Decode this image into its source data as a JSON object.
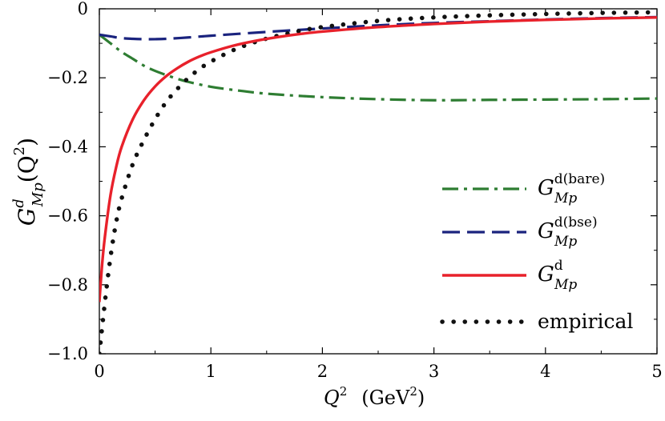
{
  "chart_data": {
    "type": "line",
    "xlabel": {
      "main": "Q",
      "sup": "2",
      "unit_main": "(GeV",
      "unit_sup": "2",
      "unit_close": ")"
    },
    "ylabel": {
      "main": "G",
      "sup": "d",
      "sub": "Mp",
      "arg_open": "(Q",
      "arg_sup": "2",
      "arg_close": ")"
    },
    "xlim": [
      0,
      5
    ],
    "ylim": [
      -1.0,
      0
    ],
    "x_ticks": [
      0,
      1,
      2,
      3,
      4,
      5
    ],
    "x_tick_labels": [
      "0",
      "1",
      "2",
      "3",
      "4",
      "5"
    ],
    "y_ticks": [
      0,
      -0.2,
      -0.4,
      -0.6,
      -0.8,
      -1.0
    ],
    "y_tick_labels": [
      "0",
      "−0.2",
      "−0.4",
      "−0.6",
      "−0.8",
      "−1.0"
    ],
    "grid": false,
    "legend_position": "lower-right",
    "series": [
      {
        "id": "bare",
        "legend_main": "G",
        "legend_sup": "d(bare)",
        "legend_sub": "Mp",
        "color": "#2e7d32",
        "style": "dashdot",
        "x": [
          0,
          0.1,
          0.2,
          0.3,
          0.4,
          0.5,
          0.6,
          0.7,
          0.8,
          1.0,
          1.2,
          1.5,
          2.0,
          2.5,
          3.0,
          3.5,
          4.0,
          4.5,
          5.0
        ],
        "y": [
          -0.075,
          -0.1,
          -0.125,
          -0.145,
          -0.165,
          -0.18,
          -0.192,
          -0.203,
          -0.212,
          -0.226,
          -0.235,
          -0.246,
          -0.256,
          -0.262,
          -0.265,
          -0.264,
          -0.263,
          -0.262,
          -0.26
        ]
      },
      {
        "id": "bse",
        "legend_main": "G",
        "legend_sup": "d(bse)",
        "legend_sub": "Mp",
        "color": "#1a237e",
        "style": "dashed",
        "x": [
          0,
          0.1,
          0.2,
          0.3,
          0.4,
          0.5,
          0.6,
          0.8,
          1.0,
          1.5,
          2.0,
          2.5,
          3.0,
          3.5,
          4.0,
          4.5,
          5.0
        ],
        "y": [
          -0.075,
          -0.08,
          -0.085,
          -0.087,
          -0.088,
          -0.088,
          -0.087,
          -0.083,
          -0.078,
          -0.067,
          -0.057,
          -0.048,
          -0.041,
          -0.036,
          -0.031,
          -0.027,
          -0.024
        ]
      },
      {
        "id": "total",
        "legend_main": "G",
        "legend_sup": "d",
        "legend_sub": "Mp",
        "color": "#e8212b",
        "style": "solid",
        "x": [
          0,
          0.025,
          0.05,
          0.1,
          0.15,
          0.2,
          0.3,
          0.4,
          0.5,
          0.6,
          0.7,
          0.8,
          0.9,
          1.0,
          1.2,
          1.4,
          1.6,
          1.8,
          2.0,
          2.5,
          3.0,
          3.5,
          4.0,
          4.5,
          5.0
        ],
        "y": [
          -0.85,
          -0.74,
          -0.66,
          -0.54,
          -0.46,
          -0.4,
          -0.32,
          -0.265,
          -0.225,
          -0.195,
          -0.172,
          -0.153,
          -0.138,
          -0.126,
          -0.107,
          -0.093,
          -0.082,
          -0.073,
          -0.066,
          -0.053,
          -0.044,
          -0.037,
          -0.032,
          -0.028,
          -0.025
        ]
      },
      {
        "id": "empirical",
        "legend_text": "empirical",
        "color": "#111111",
        "style": "dotted",
        "x": [
          0,
          0.05,
          0.1,
          0.15,
          0.2,
          0.3,
          0.4,
          0.5,
          0.6,
          0.7,
          0.8,
          0.9,
          1.0,
          1.2,
          1.4,
          1.6,
          1.8,
          2.0,
          2.5,
          3.0,
          3.5,
          4.0,
          4.5,
          5.0
        ],
        "y": [
          -1.0,
          -0.85,
          -0.72,
          -0.62,
          -0.55,
          -0.45,
          -0.38,
          -0.32,
          -0.27,
          -0.232,
          -0.2,
          -0.174,
          -0.153,
          -0.12,
          -0.096,
          -0.078,
          -0.064,
          -0.053,
          -0.035,
          -0.025,
          -0.019,
          -0.015,
          -0.012,
          -0.01
        ]
      }
    ]
  }
}
